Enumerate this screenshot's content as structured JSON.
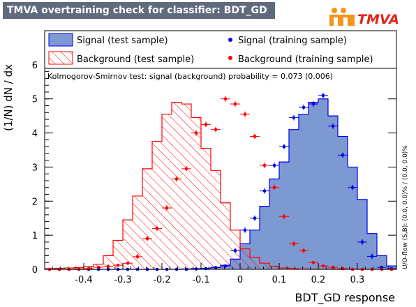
{
  "chart_data": {
    "type": "histogram",
    "title": "TMVA overtraining check for classifier: BDT_GD",
    "xlabel": "BDT_GD response",
    "ylabel": "(1/N) dN / dx",
    "xlim": [
      -0.5,
      0.4
    ],
    "ylim": [
      0,
      7
    ],
    "x_tick_labels": [
      "-0.4",
      "-0.3",
      "-0.2",
      "-0.1",
      "0",
      "0.1",
      "0.2",
      "0.3"
    ],
    "y_tick_labels": [
      "0",
      "1",
      "2",
      "3",
      "4",
      "5",
      "6"
    ],
    "grid": false,
    "bin_edges": [
      -0.5,
      -0.475,
      -0.45,
      -0.425,
      -0.4,
      -0.375,
      -0.35,
      -0.325,
      -0.3,
      -0.275,
      -0.25,
      -0.225,
      -0.2,
      -0.175,
      -0.15,
      -0.125,
      -0.1,
      -0.075,
      -0.05,
      -0.025,
      0.0,
      0.025,
      0.05,
      0.075,
      0.1,
      0.125,
      0.15,
      0.175,
      0.2,
      0.225,
      0.25,
      0.275,
      0.3,
      0.325,
      0.35,
      0.375,
      0.4
    ],
    "series": [
      {
        "name": "Signal (test sample)",
        "style": "filled",
        "values": [
          0,
          0,
          0,
          0,
          0,
          0,
          0,
          0,
          0,
          0,
          0,
          0,
          0,
          0,
          0.01,
          0.02,
          0.03,
          0.06,
          0.12,
          0.3,
          0.75,
          1.15,
          1.85,
          2.65,
          3.15,
          4.1,
          4.55,
          4.9,
          5.0,
          4.5,
          3.9,
          3.0,
          2.05,
          1.05,
          0.4,
          0.1
        ]
      },
      {
        "name": "Background (test sample)",
        "style": "hatched",
        "values": [
          0.02,
          0.03,
          0.04,
          0.05,
          0.08,
          0.15,
          0.4,
          0.85,
          1.45,
          2.15,
          2.95,
          3.75,
          4.55,
          4.9,
          4.85,
          4.45,
          3.55,
          2.9,
          1.95,
          1.15,
          0.6,
          0.35,
          0.18,
          0.09,
          0.04,
          0.02,
          0.01,
          0,
          0,
          0,
          0,
          0,
          0,
          0,
          0,
          0
        ]
      },
      {
        "name": "Signal (training sample)",
        "style": "points",
        "values": [
          0,
          0,
          0,
          0,
          0,
          0,
          0,
          0,
          0,
          0,
          0,
          0,
          0,
          0,
          0,
          0.01,
          0.02,
          0.05,
          0.1,
          0.55,
          1.15,
          1.5,
          2.3,
          3.05,
          3.6,
          4.45,
          4.75,
          4.85,
          5.1,
          4.2,
          3.35,
          2.4,
          0.8,
          0.38,
          0.06,
          0.02
        ]
      },
      {
        "name": "Background (training sample)",
        "style": "points",
        "values": [
          0,
          0,
          0,
          0.01,
          0.02,
          0.06,
          0.09,
          0.12,
          0.18,
          0.37,
          0.9,
          1.2,
          1.8,
          2.65,
          2.95,
          4.0,
          4.25,
          4.1,
          5.0,
          4.85,
          4.55,
          3.9,
          3.05,
          2.4,
          1.55,
          0.75,
          0.55,
          0.2,
          0.1,
          0.06,
          0.02,
          0,
          0,
          0,
          0,
          0
        ]
      }
    ],
    "annotation": "Kolmogorov-Smirnov test: signal (background) probability = 0.073 (0.006)",
    "side_text": "U/O-flow (S,B): (0.0, 0.0)% / (0.0, 0.0)%",
    "colors": {
      "signal_fill": "#7d99d1",
      "signal_line": "#0000ee",
      "background": "#ff0000",
      "title_bg": "#5f6b7d"
    }
  },
  "logo_text": "TMVA"
}
